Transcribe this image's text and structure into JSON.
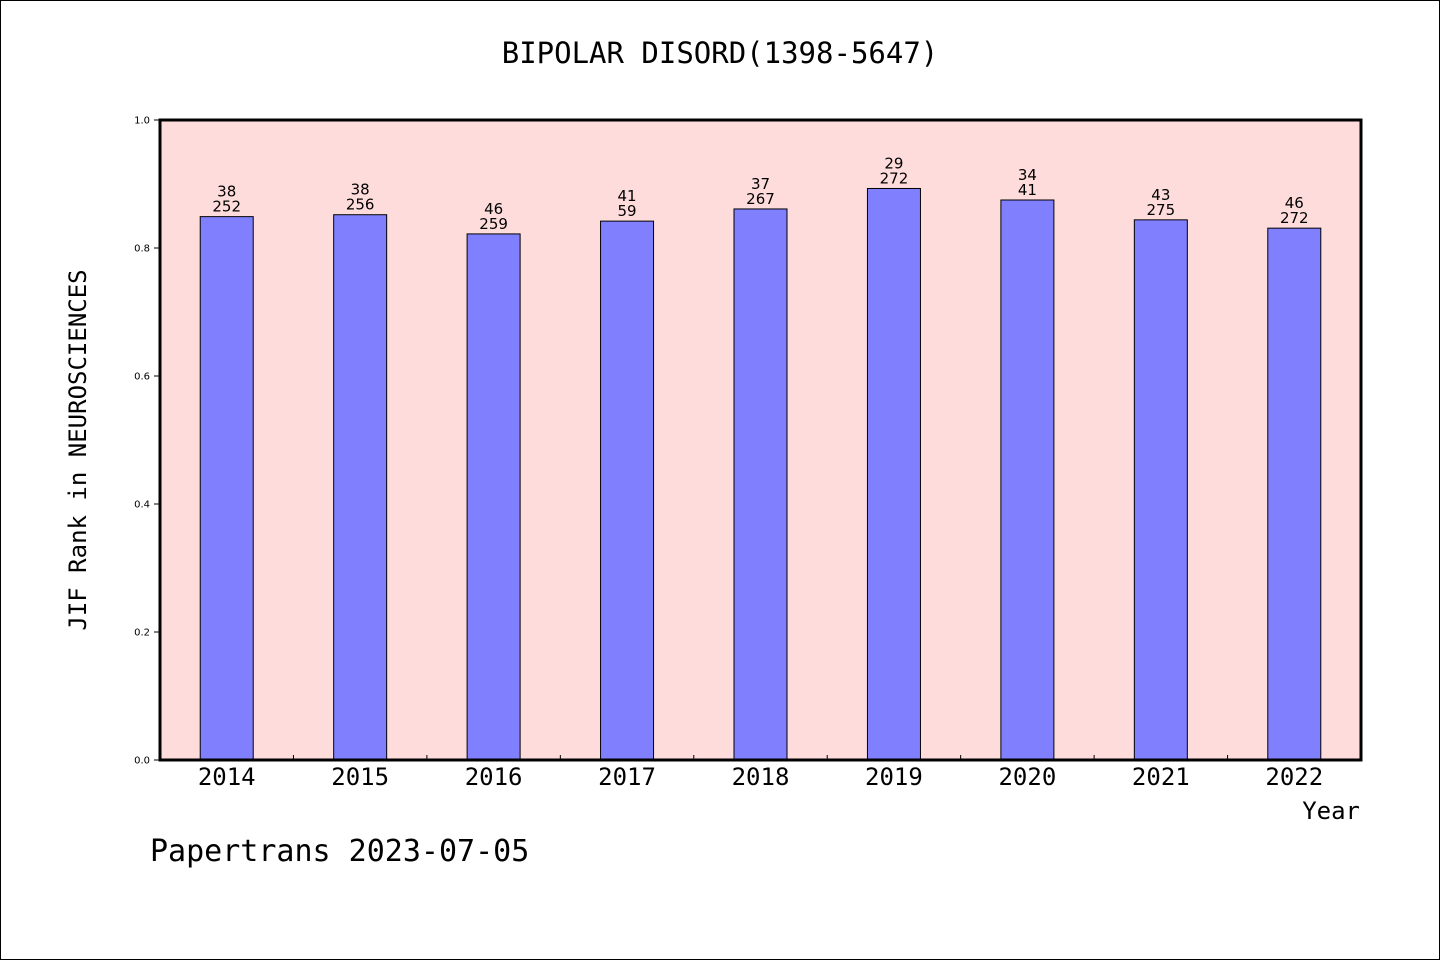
{
  "chart_data": {
    "type": "bar",
    "title": "BIPOLAR DISORD(1398-5647)",
    "xlabel": "Year",
    "ylabel": "JIF Rank in NEUROSCIENCES",
    "ylim": [
      0,
      1.0
    ],
    "yticks": [
      "0.0",
      "0.2",
      "0.4",
      "0.6",
      "0.8",
      "1.0"
    ],
    "grid": false,
    "categories": [
      "2014",
      "2015",
      "2016",
      "2017",
      "2018",
      "2019",
      "2020",
      "2021",
      "2022"
    ],
    "values": [
      0.849,
      0.852,
      0.822,
      0.842,
      0.861,
      0.893,
      0.875,
      0.844,
      0.831
    ],
    "labels_top": [
      "38",
      "38",
      "46",
      "41",
      "37",
      "29",
      "34",
      "43",
      "46"
    ],
    "labels_bottom": [
      "252",
      "256",
      "259",
      "59",
      "267",
      "272",
      "41",
      "275",
      "272"
    ],
    "colors": {
      "bar": "#8080ff",
      "plot_bg": "#ffdcdc"
    }
  },
  "footer": "Papertrans 2023-07-05"
}
